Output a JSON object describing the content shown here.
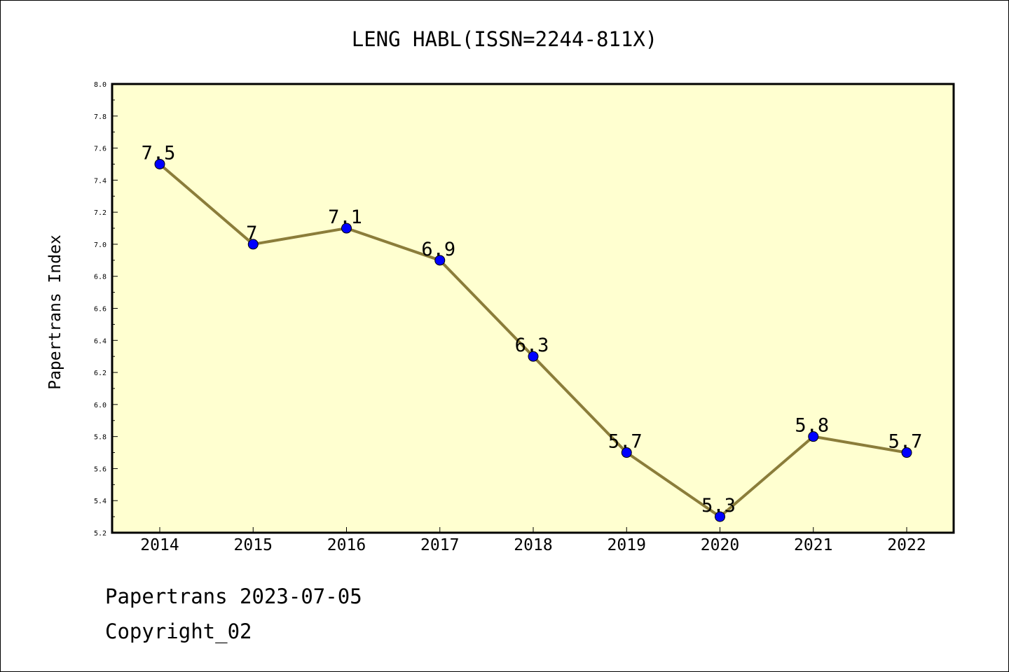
{
  "chart_data": {
    "type": "line",
    "title": "LENG HABL(ISSN=2244-811X)",
    "xlabel": "",
    "ylabel": "Papertrans Index",
    "categories": [
      "2014",
      "2015",
      "2016",
      "2017",
      "2018",
      "2019",
      "2020",
      "2021",
      "2022"
    ],
    "values": [
      7.5,
      7.0,
      7.1,
      6.9,
      6.3,
      5.7,
      5.3,
      5.8,
      5.7
    ],
    "data_labels": [
      "7.5",
      "7",
      "7.1",
      "6.9",
      "6.3",
      "5.7",
      "5.3",
      "5.8",
      "5.7"
    ],
    "ylim": [
      5.2,
      8.0
    ],
    "yticks": [
      "5.2",
      "5.4",
      "5.6",
      "5.8",
      "6.0",
      "6.2",
      "6.4",
      "6.6",
      "6.8",
      "7.0",
      "7.2",
      "7.4",
      "7.6",
      "7.8",
      "8.0"
    ],
    "grid": false,
    "legend": "none",
    "colors": {
      "plot_background": "#ffffd0",
      "line": "#8b7d3a",
      "marker": "#0000ff"
    }
  },
  "footer": {
    "date_line": "Papertrans 2023-07-05",
    "copyright_line": "Copyright_02"
  }
}
